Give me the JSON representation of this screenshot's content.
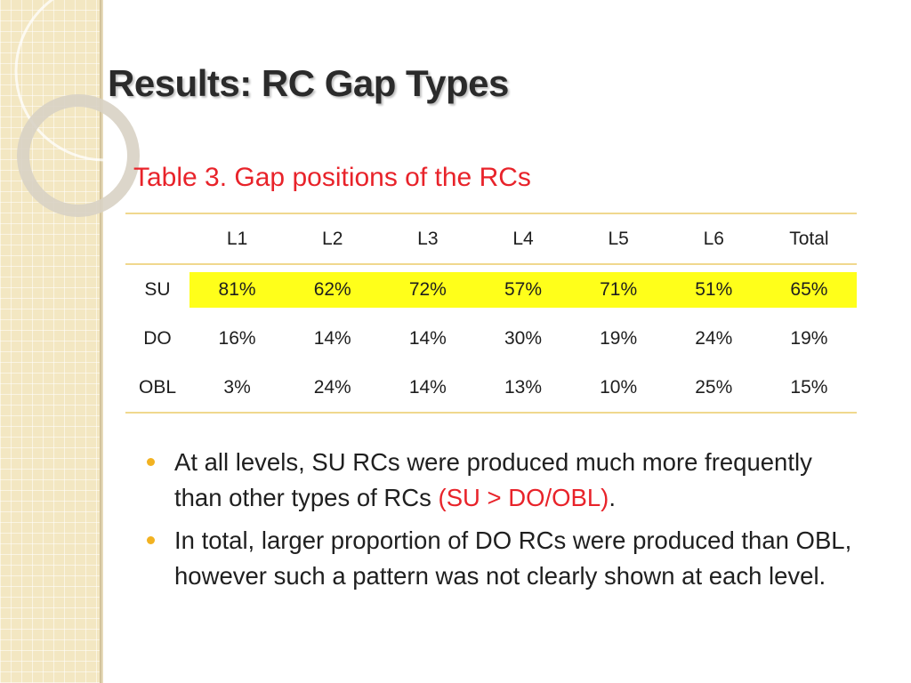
{
  "slide": {
    "title": "Results: RC Gap Types",
    "caption": "Table 3. Gap positions of the RCs"
  },
  "table": {
    "headers": [
      "",
      "L1",
      "L2",
      "L3",
      "L4",
      "L5",
      "L6",
      "Total"
    ],
    "rows": [
      {
        "label": "SU",
        "values": [
          "81%",
          "62%",
          "72%",
          "57%",
          "71%",
          "51%",
          "65%"
        ],
        "highlight": true
      },
      {
        "label": "DO",
        "values": [
          "16%",
          "14%",
          "14%",
          "30%",
          "19%",
          "24%",
          "19%"
        ],
        "highlight": false
      },
      {
        "label": "OBL",
        "values": [
          "3%",
          "24%",
          "14%",
          "13%",
          "10%",
          "25%",
          "15%"
        ],
        "highlight": false
      }
    ]
  },
  "bullets": [
    {
      "text": "At all levels, SU RCs were produced much more frequently than other types of RCs ",
      "emphasis": "(SU > DO/OBL)",
      "tail": "."
    },
    {
      "text": "In total, larger proportion of DO RCs were produced than OBL, however such a pattern was not clearly shown at each level."
    }
  ],
  "colors": {
    "accent": "#e8232a",
    "highlight": "#ffff1a",
    "rule": "#f0d88e",
    "bullet": "#f2b221",
    "sidebar": "#f3e7c2"
  }
}
